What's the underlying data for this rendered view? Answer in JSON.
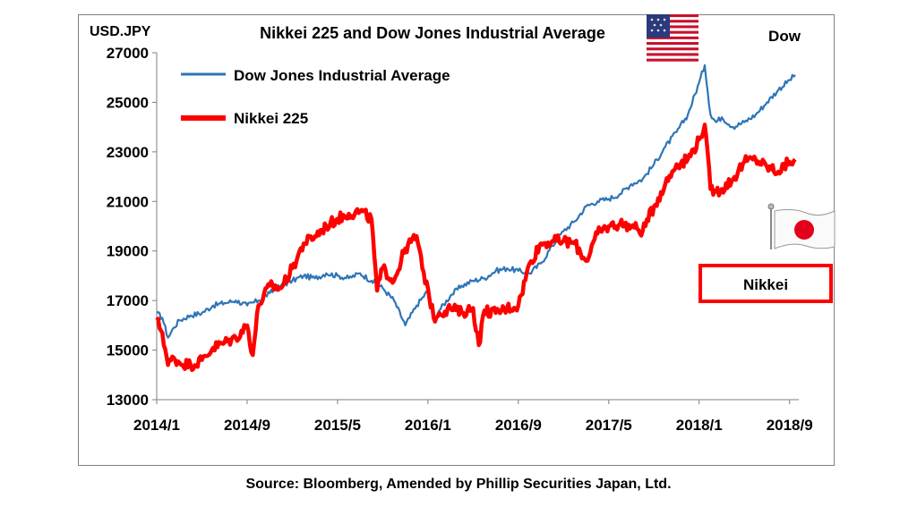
{
  "chart_data": {
    "type": "line",
    "title": "Nikkei 225 and Dow Jones Industrial Average",
    "unit_label": "USD.JPY",
    "corner_label": "Dow",
    "box_label": "Nikkei",
    "ylim": [
      13000,
      27000
    ],
    "y_ticks": [
      "27000",
      "25000",
      "23000",
      "21000",
      "19000",
      "17000",
      "15000",
      "13000"
    ],
    "y_tick_values": [
      27000,
      25000,
      23000,
      21000,
      19000,
      17000,
      15000,
      13000
    ],
    "x_tick_labels": [
      "2014/1",
      "2014/9",
      "2015/5",
      "2016/1",
      "2016/9",
      "2017/5",
      "2018/1",
      "2018/9"
    ],
    "x_tick_months": [
      0,
      8,
      16,
      24,
      32,
      40,
      48,
      56
    ],
    "xlim_months": [
      0,
      56.5
    ],
    "legend": [
      "Dow Jones Industrial Average",
      "Nikkei 225"
    ],
    "grid": false,
    "colors": {
      "dow": "#2e75b6",
      "nikkei": "#ff0000"
    },
    "series": [
      {
        "name": "Dow Jones Industrial Average",
        "color": "#2e75b6",
        "x": [
          0,
          0.5,
          1,
          1.5,
          2,
          3,
          4,
          5,
          6,
          7,
          8,
          9,
          10,
          11,
          12,
          13,
          14,
          15,
          16,
          17,
          18,
          19,
          20,
          21,
          22,
          23,
          24,
          24.5,
          25,
          26,
          27,
          28,
          29,
          30,
          31,
          32,
          33,
          34,
          35,
          36,
          37,
          38,
          39,
          40,
          41,
          42,
          43,
          44,
          45,
          46,
          47,
          48,
          48.5,
          49,
          49.5,
          50,
          51,
          52,
          53,
          54,
          55,
          56,
          56.5
        ],
        "y": [
          16500,
          16300,
          15500,
          15900,
          16200,
          16400,
          16500,
          16800,
          16900,
          17000,
          16800,
          17000,
          17300,
          17600,
          17800,
          18000,
          17900,
          18100,
          18000,
          17900,
          18100,
          17800,
          17500,
          17000,
          16000,
          16800,
          17400,
          16200,
          16600,
          17200,
          17600,
          17800,
          17900,
          18200,
          18300,
          18200,
          18100,
          18500,
          19200,
          19800,
          20200,
          20800,
          21000,
          21100,
          21300,
          21700,
          21900,
          22500,
          23200,
          23800,
          24500,
          25800,
          26500,
          24500,
          24200,
          24400,
          24000,
          24200,
          24500,
          25000,
          25500,
          25900,
          26100
        ]
      },
      {
        "name": "Nikkei 225",
        "color": "#ff0000",
        "x": [
          0,
          0.5,
          1,
          1.5,
          2,
          3,
          4,
          5,
          6,
          7,
          8,
          8.5,
          9,
          10,
          11,
          12,
          13,
          14,
          15,
          16,
          17,
          18,
          19,
          19.5,
          20,
          21,
          22,
          23,
          23.5,
          24,
          24.5,
          25,
          26,
          27,
          28,
          28.5,
          29,
          30,
          31,
          32,
          33,
          34,
          35,
          36,
          37,
          38,
          39,
          40,
          41,
          42,
          43,
          44,
          45,
          46,
          47,
          48,
          48.5,
          49,
          49.5,
          50,
          51,
          52,
          53,
          54,
          55,
          56,
          56.5
        ],
        "y": [
          16200,
          15700,
          14400,
          14700,
          14500,
          14400,
          14600,
          15100,
          15300,
          15500,
          16000,
          14800,
          16800,
          17600,
          17500,
          18300,
          19300,
          19600,
          20000,
          20300,
          20500,
          20600,
          20300,
          17400,
          18300,
          17800,
          19100,
          19600,
          18300,
          17500,
          16300,
          16500,
          16700,
          16500,
          16700,
          15200,
          16600,
          16500,
          16700,
          16800,
          18500,
          19300,
          19400,
          19400,
          19300,
          18600,
          19700,
          20000,
          20100,
          20000,
          19800,
          20800,
          21700,
          22500,
          22700,
          23500,
          24100,
          21500,
          21400,
          21500,
          21900,
          22600,
          22700,
          22400,
          22200,
          22600,
          22700
        ]
      }
    ]
  },
  "footer": {
    "source": "Source: Bloomberg, Amended by Phillip Securities Japan, Ltd."
  },
  "flags": {
    "us": "us-flag-icon",
    "japan": "japan-flag-icon"
  }
}
